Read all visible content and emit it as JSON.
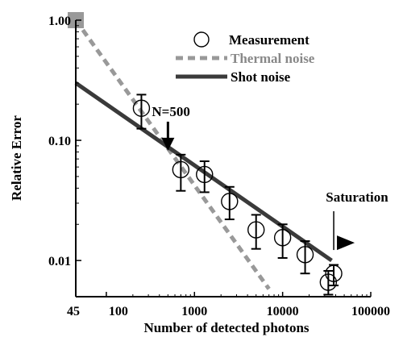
{
  "chart_data": {
    "type": "scatter",
    "xlabel": "Number of detected photons",
    "ylabel": "Relative Error",
    "x_scale": "log",
    "y_scale": "log",
    "xlim": [
      45,
      100000
    ],
    "ylim": [
      0.005,
      1.0
    ],
    "x_tick_labels": [
      {
        "value": 45,
        "label": "45"
      },
      {
        "value": 100,
        "label": "100"
      },
      {
        "value": 1000,
        "label": "1000"
      },
      {
        "value": 10000,
        "label": "10000"
      },
      {
        "value": 100000,
        "label": "100000"
      }
    ],
    "y_tick_labels": [
      {
        "value": 1.0,
        "label": "1.00"
      },
      {
        "value": 0.1,
        "label": "0.10"
      },
      {
        "value": 0.01,
        "label": "0.01"
      }
    ],
    "grid": false,
    "legend_position": "top-right",
    "series": [
      {
        "name": "Measurement",
        "kind": "markers-with-errorbars",
        "marker": "open-circle",
        "color": "#000000",
        "points": [
          {
            "x": 250,
            "y": 0.185,
            "err_low": 0.125,
            "err_high": 0.24
          },
          {
            "x": 700,
            "y": 0.057,
            "err_low": 0.038,
            "err_high": 0.076
          },
          {
            "x": 1300,
            "y": 0.052,
            "err_low": 0.037,
            "err_high": 0.067
          },
          {
            "x": 2500,
            "y": 0.031,
            "err_low": 0.022,
            "err_high": 0.041
          },
          {
            "x": 5000,
            "y": 0.018,
            "err_low": 0.0125,
            "err_high": 0.024
          },
          {
            "x": 10000,
            "y": 0.0155,
            "err_low": 0.0105,
            "err_high": 0.02
          },
          {
            "x": 18000,
            "y": 0.0112,
            "err_low": 0.0078,
            "err_high": 0.0145
          },
          {
            "x": 33000,
            "y": 0.0066,
            "err_low": 0.0052,
            "err_high": 0.0082
          },
          {
            "x": 38000,
            "y": 0.0078,
            "err_low": 0.0062,
            "err_high": 0.0092
          }
        ]
      },
      {
        "name": "Thermal noise",
        "kind": "dashed-line",
        "color": "#999999",
        "points": [
          {
            "x": 45,
            "y": 1.0
          },
          {
            "x": 7000,
            "y": 0.0058
          }
        ]
      },
      {
        "name": "Shot noise",
        "kind": "solid-line",
        "color": "#3a3a3a",
        "points": [
          {
            "x": 45,
            "y": 0.3
          },
          {
            "x": 36000,
            "y": 0.01
          }
        ]
      }
    ],
    "annotations": [
      {
        "text": "N=500",
        "x": 500,
        "y": 0.082,
        "marker": "down-arrow"
      },
      {
        "text": "Saturation",
        "x": 38000,
        "y": 0.0115,
        "marker": "right-triangle"
      }
    ]
  }
}
